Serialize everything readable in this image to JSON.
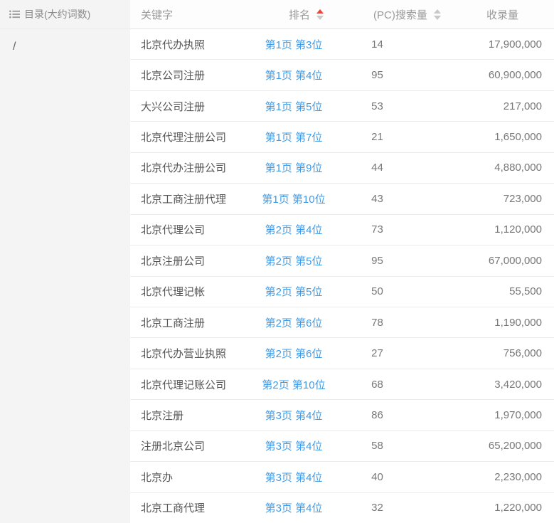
{
  "sidebar": {
    "header_label": "目录(大约词数)",
    "items": [
      {
        "label": "/"
      }
    ]
  },
  "table": {
    "columns": {
      "keyword": "关键字",
      "rank": "排名",
      "pc_search": "(PC)搜索量",
      "index": "收录量"
    },
    "sort_state": {
      "rank": "asc-active",
      "pc_search": "none"
    },
    "rows": [
      {
        "keyword": "北京代办执照",
        "rank": "第1页 第3位",
        "pc_search": "14",
        "index": "17,900,000"
      },
      {
        "keyword": "北京公司注册",
        "rank": "第1页 第4位",
        "pc_search": "95",
        "index": "60,900,000"
      },
      {
        "keyword": "大兴公司注册",
        "rank": "第1页 第5位",
        "pc_search": "53",
        "index": "217,000"
      },
      {
        "keyword": "北京代理注册公司",
        "rank": "第1页 第7位",
        "pc_search": "21",
        "index": "1,650,000"
      },
      {
        "keyword": "北京代办注册公司",
        "rank": "第1页 第9位",
        "pc_search": "44",
        "index": "4,880,000"
      },
      {
        "keyword": "北京工商注册代理",
        "rank": "第1页 第10位",
        "pc_search": "43",
        "index": "723,000"
      },
      {
        "keyword": "北京代理公司",
        "rank": "第2页 第4位",
        "pc_search": "73",
        "index": "1,120,000"
      },
      {
        "keyword": "北京注册公司",
        "rank": "第2页 第5位",
        "pc_search": "95",
        "index": "67,000,000"
      },
      {
        "keyword": "北京代理记帐",
        "rank": "第2页 第5位",
        "pc_search": "50",
        "index": "55,500"
      },
      {
        "keyword": "北京工商注册",
        "rank": "第2页 第6位",
        "pc_search": "78",
        "index": "1,190,000"
      },
      {
        "keyword": "北京代办营业执照",
        "rank": "第2页 第6位",
        "pc_search": "27",
        "index": "756,000"
      },
      {
        "keyword": "北京代理记账公司",
        "rank": "第2页 第10位",
        "pc_search": "68",
        "index": "3,420,000"
      },
      {
        "keyword": "北京注册",
        "rank": "第3页 第4位",
        "pc_search": "86",
        "index": "1,970,000"
      },
      {
        "keyword": "注册北京公司",
        "rank": "第3页 第4位",
        "pc_search": "58",
        "index": "65,200,000"
      },
      {
        "keyword": "北京办",
        "rank": "第3页 第4位",
        "pc_search": "40",
        "index": "2,230,000"
      },
      {
        "keyword": "北京工商代理",
        "rank": "第3页 第4位",
        "pc_search": "32",
        "index": "1,220,000"
      }
    ]
  },
  "colors": {
    "link": "#3d9be9",
    "sort_active": "#ec4438",
    "sort_inactive": "#c8c8c8",
    "sidebar_bg": "#f4f4f4"
  }
}
